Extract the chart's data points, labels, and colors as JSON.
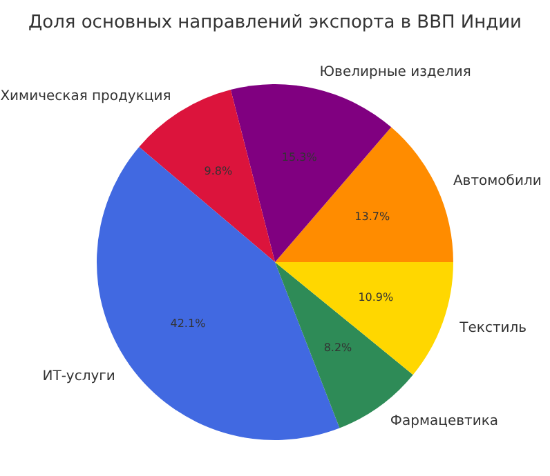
{
  "chart_data": {
    "type": "pie",
    "title": "Доля основных направлений экспорта в ВВП Индии",
    "categories": [
      "Автомобили",
      "Ювелирные изделия",
      "Химическая продукция",
      "ИТ-услуги",
      "Фармацевтика",
      "Текстиль"
    ],
    "values": [
      13.7,
      15.3,
      9.8,
      42.1,
      8.2,
      10.9
    ],
    "colors": [
      "#ff8c00",
      "#800080",
      "#dc143c",
      "#4169e1",
      "#2e8b57",
      "#ffd700"
    ],
    "value_labels": [
      "13.7%",
      "15.3%",
      "9.8%",
      "42.1%",
      "8.2%",
      "10.9%"
    ]
  }
}
